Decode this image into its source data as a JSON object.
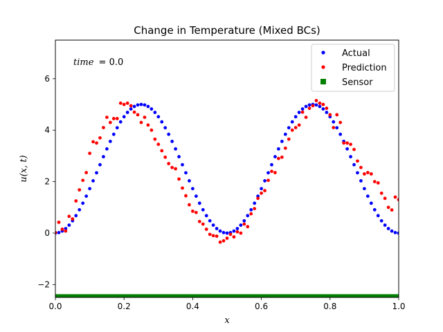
{
  "chart_data": {
    "type": "scatter",
    "title": "Change in Temperature (Mixed BCs)",
    "xlabel": "x",
    "ylabel": "u(x, t)",
    "xlim": [
      0,
      1
    ],
    "ylim": [
      -2.5,
      7.5
    ],
    "x_ticks": [
      0.0,
      0.2,
      0.4,
      0.6,
      0.8,
      1.0
    ],
    "x_tick_labels": [
      "0.0",
      "0.2",
      "0.4",
      "0.6",
      "0.8",
      "1.0"
    ],
    "y_ticks": [
      -2,
      0,
      2,
      4,
      6
    ],
    "y_tick_labels": [
      "−2",
      "0",
      "2",
      "4",
      "6"
    ],
    "annotation": {
      "label": "time",
      "value": "= 0.0"
    },
    "legend_position": "upper right",
    "series": [
      {
        "name": "Actual",
        "marker": "circle",
        "color": "#0000ff",
        "function": "2.5*(1-cos(4*pi*x))",
        "n_points": 101
      },
      {
        "name": "Prediction",
        "marker": "circle",
        "color": "#ff0000",
        "x": [
          0.0,
          0.01,
          0.02,
          0.03,
          0.04,
          0.05,
          0.06,
          0.07,
          0.08,
          0.09,
          0.1,
          0.11,
          0.12,
          0.13,
          0.14,
          0.15,
          0.16,
          0.17,
          0.18,
          0.19,
          0.2,
          0.21,
          0.22,
          0.23,
          0.24,
          0.25,
          0.26,
          0.27,
          0.28,
          0.29,
          0.3,
          0.31,
          0.32,
          0.33,
          0.34,
          0.35,
          0.36,
          0.37,
          0.38,
          0.39,
          0.4,
          0.41,
          0.42,
          0.43,
          0.44,
          0.45,
          0.46,
          0.47,
          0.48,
          0.49,
          0.5,
          0.51,
          0.52,
          0.53,
          0.54,
          0.55,
          0.56,
          0.57,
          0.58,
          0.59,
          0.6,
          0.61,
          0.62,
          0.63,
          0.64,
          0.65,
          0.66,
          0.67,
          0.68,
          0.69,
          0.7,
          0.71,
          0.72,
          0.73,
          0.74,
          0.75,
          0.76,
          0.77,
          0.78,
          0.79,
          0.8,
          0.81,
          0.82,
          0.83,
          0.84,
          0.85,
          0.86,
          0.87,
          0.88,
          0.89,
          0.9,
          0.91,
          0.92,
          0.93,
          0.94,
          0.95,
          0.96,
          0.97,
          0.98,
          0.99,
          1.0
        ],
        "y": [
          0.02,
          0.42,
          0.15,
          0.08,
          0.65,
          0.55,
          1.25,
          1.68,
          2.05,
          2.35,
          3.1,
          3.55,
          3.5,
          3.7,
          4.1,
          4.5,
          4.3,
          4.45,
          4.45,
          5.05,
          5.0,
          5.05,
          4.95,
          4.7,
          4.6,
          4.3,
          4.5,
          4.2,
          4.0,
          3.65,
          3.45,
          3.2,
          2.95,
          2.7,
          2.55,
          2.5,
          2.1,
          1.75,
          1.45,
          1.1,
          0.85,
          0.8,
          0.45,
          0.35,
          0.15,
          -0.05,
          -0.1,
          -0.12,
          -0.35,
          -0.3,
          -0.2,
          -0.05,
          -0.15,
          0.05,
          0.0,
          0.35,
          0.25,
          0.75,
          0.95,
          1.35,
          1.55,
          1.65,
          2.05,
          2.4,
          2.35,
          2.9,
          2.95,
          3.3,
          3.65,
          4.0,
          4.1,
          4.2,
          4.7,
          4.5,
          4.85,
          4.95,
          5.15,
          5.05,
          5.0,
          4.85,
          4.6,
          4.1,
          4.6,
          4.3,
          3.5,
          3.5,
          3.45,
          3.25,
          2.8,
          2.55,
          2.3,
          2.35,
          2.3,
          2.0,
          1.95,
          1.55,
          1.35,
          1.0,
          0.9,
          1.4,
          1.3
        ]
      },
      {
        "name": "Sensor",
        "marker": "square",
        "color": "#008000",
        "y_constant": -2.45,
        "n_points": 101
      }
    ]
  }
}
